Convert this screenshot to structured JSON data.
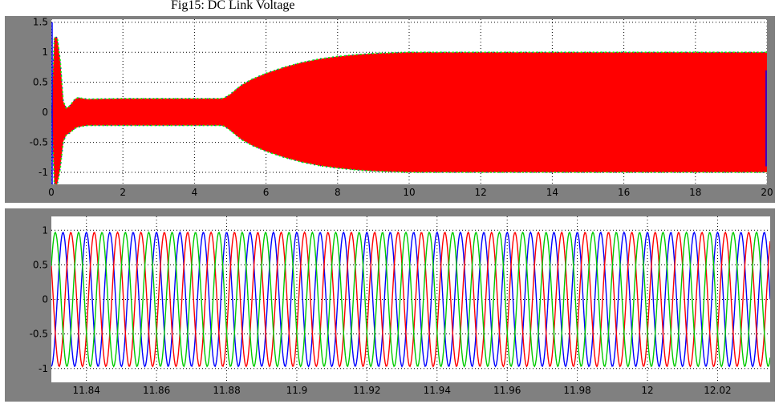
{
  "caption": "Fig15: DC Link Voltage",
  "chart_data": [
    {
      "type": "line",
      "title": "",
      "xlabel": "",
      "ylabel": "",
      "xlim": [
        0,
        20
      ],
      "ylim": [
        -1.2,
        1.55
      ],
      "x_ticks": [
        0,
        2,
        4,
        6,
        8,
        10,
        12,
        14,
        16,
        18,
        20
      ],
      "y_ticks": [
        -1,
        -0.5,
        0,
        0.5,
        1,
        1.5
      ],
      "x_tick_labels": [
        "0",
        "2",
        "4",
        "6",
        "8",
        "10",
        "12",
        "14",
        "16",
        "18",
        "20"
      ],
      "y_tick_labels": [
        "-1",
        "-0.5",
        "0",
        "0.5",
        "1",
        "1.5"
      ],
      "grid": true,
      "series": [
        {
          "color": "#ff0000",
          "kind": "envelope",
          "x": [
            0,
            0.05,
            0.2,
            0.35,
            0.5,
            0.7,
            1.0,
            2,
            3,
            4,
            4.8,
            5.0,
            5.3,
            5.6,
            6,
            6.5,
            7,
            7.5,
            8,
            8.5,
            9,
            10,
            12,
            14,
            16,
            18,
            20
          ],
          "upper": [
            0,
            1.25,
            1.25,
            0.05,
            0.1,
            0.25,
            0.22,
            0.23,
            0.23,
            0.23,
            0.23,
            0.3,
            0.45,
            0.55,
            0.65,
            0.75,
            0.83,
            0.89,
            0.93,
            0.96,
            0.98,
            1.0,
            1.0,
            1.0,
            1.0,
            1.0,
            1.0
          ],
          "lower": [
            0,
            -1.2,
            -1.2,
            -0.4,
            -0.35,
            -0.25,
            -0.22,
            -0.22,
            -0.22,
            -0.22,
            -0.22,
            -0.3,
            -0.45,
            -0.55,
            -0.65,
            -0.75,
            -0.83,
            -0.89,
            -0.93,
            -0.96,
            -0.98,
            -1.0,
            -1.0,
            -1.0,
            -1.0,
            -1.0,
            -1.0
          ]
        },
        {
          "color": "#00ff00",
          "kind": "edge"
        },
        {
          "color": "#0000ff",
          "kind": "edge"
        }
      ]
    },
    {
      "type": "line",
      "title": "",
      "xlabel": "",
      "ylabel": "",
      "xlim": [
        11.83,
        12.035
      ],
      "ylim": [
        -1.2,
        1.2
      ],
      "x_ticks": [
        11.84,
        11.86,
        11.88,
        11.9,
        11.92,
        11.94,
        11.96,
        11.98,
        12,
        12.02
      ],
      "y_ticks": [
        -1,
        -0.5,
        0,
        0.5,
        1
      ],
      "x_tick_labels": [
        "11.84",
        "11.86",
        "11.88",
        "11.9",
        "11.92",
        "11.94",
        "11.96",
        "11.98",
        "12",
        "12.02"
      ],
      "y_tick_labels": [
        "-1",
        "-0.5",
        "0",
        "0.5",
        "1"
      ],
      "grid": true,
      "series": [
        {
          "color": "#0000ff",
          "amplitude": 0.97,
          "frequency_hz": 150,
          "phase_deg": 90
        },
        {
          "color": "#ff0000",
          "amplitude": 0.97,
          "frequency_hz": 150,
          "phase_deg": -30
        },
        {
          "color": "#00cc00",
          "amplitude": 0.97,
          "frequency_hz": 150,
          "phase_deg": 210
        }
      ]
    }
  ]
}
